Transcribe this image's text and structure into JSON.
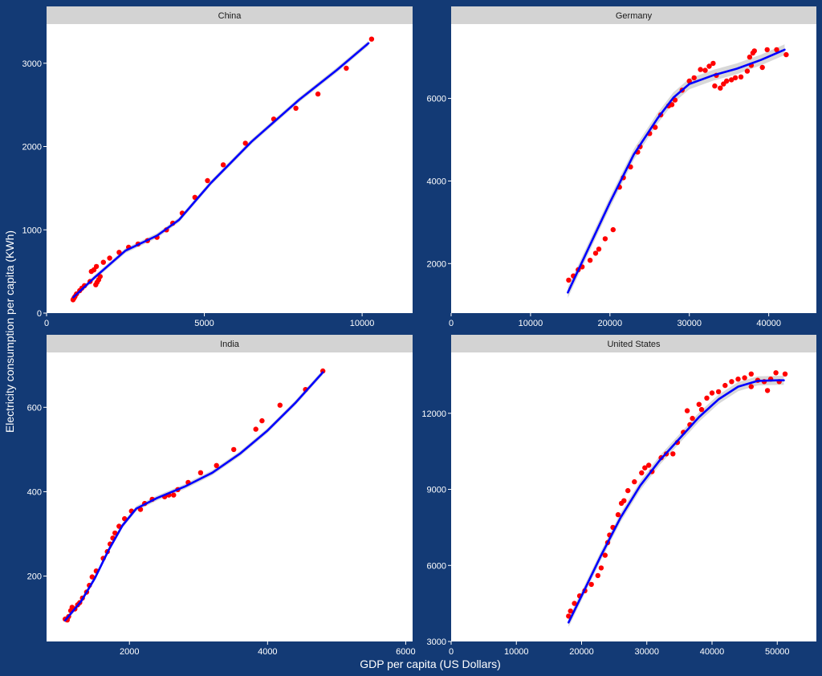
{
  "colors": {
    "background": "#133a75",
    "points": "#ff0000",
    "smooth_line": "#0000ff",
    "ribbon": "#bebebe",
    "strip": "#d3d3d3",
    "panel": "#ffffff"
  },
  "chart_data": {
    "type": "scatter",
    "xlabel": "GDP per capita (US Dollars)",
    "ylabel": "Electricity consumption per capita (KWh)",
    "grid": false,
    "overlay": "smoothed trend line with confidence band",
    "facets": [
      {
        "title": "China",
        "xlim": [
          0,
          11600
        ],
        "ylim": [
          0,
          3470
        ],
        "x_ticks": [
          0,
          5000,
          10000
        ],
        "x_tick_labels": [
          "0",
          "5000",
          "10000"
        ],
        "y_ticks": [
          0,
          1000,
          2000,
          3000
        ],
        "y_tick_labels": [
          "0",
          "1000",
          "2000",
          "3000"
        ],
        "points": [
          [
            840,
            160
          ],
          [
            870,
            180
          ],
          [
            900,
            200
          ],
          [
            950,
            230
          ],
          [
            1050,
            270
          ],
          [
            1120,
            300
          ],
          [
            1200,
            330
          ],
          [
            1380,
            380
          ],
          [
            1420,
            500
          ],
          [
            1500,
            520
          ],
          [
            1560,
            340
          ],
          [
            1600,
            370
          ],
          [
            1650,
            400
          ],
          [
            1700,
            440
          ],
          [
            1580,
            560
          ],
          [
            1800,
            610
          ],
          [
            2000,
            660
          ],
          [
            2300,
            730
          ],
          [
            2600,
            790
          ],
          [
            2900,
            830
          ],
          [
            3200,
            870
          ],
          [
            3500,
            910
          ],
          [
            3800,
            1000
          ],
          [
            4000,
            1080
          ],
          [
            4300,
            1200
          ],
          [
            4700,
            1390
          ],
          [
            5100,
            1590
          ],
          [
            5600,
            1780
          ],
          [
            6300,
            2040
          ],
          [
            7200,
            2330
          ],
          [
            7900,
            2460
          ],
          [
            8600,
            2630
          ],
          [
            9500,
            2940
          ],
          [
            10300,
            3290
          ]
        ],
        "smooth": [
          [
            850,
            190
          ],
          [
            1500,
            420
          ],
          [
            2500,
            750
          ],
          [
            3500,
            930
          ],
          [
            4200,
            1120
          ],
          [
            5200,
            1560
          ],
          [
            6500,
            2060
          ],
          [
            8000,
            2560
          ],
          [
            9200,
            2920
          ],
          [
            10200,
            3240
          ]
        ],
        "band": 30
      },
      {
        "title": "Germany",
        "xlim": [
          0,
          46000
        ],
        "ylim": [
          800,
          7800
        ],
        "x_ticks": [
          0,
          10000,
          20000,
          30000,
          40000
        ],
        "x_tick_labels": [
          "0",
          "10000",
          "20000",
          "30000",
          "40000"
        ],
        "y_ticks": [
          2000,
          4000,
          6000
        ],
        "y_tick_labels": [
          "2000",
          "4000",
          "6000"
        ],
        "points": [
          [
            14800,
            1600
          ],
          [
            15400,
            1700
          ],
          [
            16000,
            1850
          ],
          [
            16500,
            1920
          ],
          [
            17500,
            2080
          ],
          [
            18200,
            2250
          ],
          [
            18600,
            2350
          ],
          [
            19400,
            2600
          ],
          [
            20400,
            2820
          ],
          [
            21200,
            3850
          ],
          [
            21700,
            4080
          ],
          [
            22600,
            4340
          ],
          [
            23500,
            4700
          ],
          [
            23800,
            4830
          ],
          [
            25000,
            5150
          ],
          [
            25700,
            5300
          ],
          [
            26400,
            5600
          ],
          [
            27400,
            5820
          ],
          [
            27800,
            5850
          ],
          [
            28200,
            5960
          ],
          [
            29100,
            6200
          ],
          [
            30000,
            6420
          ],
          [
            30600,
            6500
          ],
          [
            31400,
            6700
          ],
          [
            32000,
            6680
          ],
          [
            32500,
            6780
          ],
          [
            33000,
            6850
          ],
          [
            33400,
            6560
          ],
          [
            33200,
            6300
          ],
          [
            33900,
            6250
          ],
          [
            34300,
            6350
          ],
          [
            34700,
            6420
          ],
          [
            35300,
            6450
          ],
          [
            35800,
            6500
          ],
          [
            36500,
            6520
          ],
          [
            37300,
            6660
          ],
          [
            37600,
            7000
          ],
          [
            37800,
            6800
          ],
          [
            38000,
            7100
          ],
          [
            38200,
            7150
          ],
          [
            39200,
            6750
          ],
          [
            39800,
            7180
          ],
          [
            41000,
            7180
          ],
          [
            42200,
            7060
          ]
        ],
        "smooth": [
          [
            14700,
            1300
          ],
          [
            17000,
            2250
          ],
          [
            20000,
            3480
          ],
          [
            23000,
            4640
          ],
          [
            26000,
            5520
          ],
          [
            28000,
            6020
          ],
          [
            30000,
            6350
          ],
          [
            33000,
            6560
          ],
          [
            36000,
            6720
          ],
          [
            39000,
            6930
          ],
          [
            42000,
            7180
          ]
        ],
        "band": 130
      },
      {
        "title": "India",
        "xlim": [
          800,
          6100
        ],
        "ylim": [
          45,
          730
        ],
        "x_ticks": [
          2000,
          4000,
          6000
        ],
        "x_tick_labels": [
          "2000",
          "4000",
          "6000"
        ],
        "y_ticks": [
          200,
          400,
          600
        ],
        "y_tick_labels": [
          "200",
          "400",
          "600"
        ],
        "points": [
          [
            1070,
            98
          ],
          [
            1100,
            96
          ],
          [
            1120,
            104
          ],
          [
            1150,
            118
          ],
          [
            1170,
            126
          ],
          [
            1210,
            122
          ],
          [
            1250,
            132
          ],
          [
            1280,
            137
          ],
          [
            1320,
            148
          ],
          [
            1380,
            162
          ],
          [
            1420,
            178
          ],
          [
            1460,
            198
          ],
          [
            1520,
            212
          ],
          [
            1620,
            242
          ],
          [
            1680,
            258
          ],
          [
            1720,
            276
          ],
          [
            1760,
            290
          ],
          [
            1790,
            302
          ],
          [
            1850,
            318
          ],
          [
            1930,
            336
          ],
          [
            2030,
            354
          ],
          [
            2160,
            358
          ],
          [
            2220,
            372
          ],
          [
            2330,
            382
          ],
          [
            2510,
            388
          ],
          [
            2570,
            392
          ],
          [
            2640,
            392
          ],
          [
            2700,
            405
          ],
          [
            2850,
            422
          ],
          [
            3030,
            445
          ],
          [
            3260,
            462
          ],
          [
            3510,
            500
          ],
          [
            3830,
            548
          ],
          [
            3920,
            568
          ],
          [
            4180,
            605
          ],
          [
            4550,
            642
          ],
          [
            4800,
            686
          ]
        ],
        "smooth": [
          [
            1070,
            95
          ],
          [
            1300,
            140
          ],
          [
            1500,
            195
          ],
          [
            1700,
            262
          ],
          [
            1900,
            320
          ],
          [
            2100,
            360
          ],
          [
            2400,
            385
          ],
          [
            2800,
            412
          ],
          [
            3200,
            445
          ],
          [
            3600,
            490
          ],
          [
            4000,
            545
          ],
          [
            4400,
            610
          ],
          [
            4800,
            683
          ]
        ],
        "band": 6
      },
      {
        "title": "United States",
        "xlim": [
          0,
          56000
        ],
        "ylim": [
          3000,
          14400
        ],
        "x_ticks": [
          0,
          10000,
          20000,
          30000,
          40000,
          50000
        ],
        "x_tick_labels": [
          "0",
          "10000",
          "20000",
          "30000",
          "40000",
          "50000"
        ],
        "y_ticks": [
          3000,
          6000,
          9000,
          12000
        ],
        "y_tick_labels": [
          "3000",
          "6000",
          "9000",
          "12000"
        ],
        "points": [
          [
            18000,
            4000
          ],
          [
            18300,
            4200
          ],
          [
            18900,
            4500
          ],
          [
            19700,
            4800
          ],
          [
            20500,
            5000
          ],
          [
            21500,
            5250
          ],
          [
            22500,
            5600
          ],
          [
            23000,
            5900
          ],
          [
            23600,
            6400
          ],
          [
            24000,
            6900
          ],
          [
            24300,
            7200
          ],
          [
            24800,
            7500
          ],
          [
            25600,
            8000
          ],
          [
            26100,
            8450
          ],
          [
            26500,
            8550
          ],
          [
            27100,
            8950
          ],
          [
            28100,
            9300
          ],
          [
            29200,
            9650
          ],
          [
            29700,
            9850
          ],
          [
            30300,
            9950
          ],
          [
            30800,
            9700
          ],
          [
            32200,
            10250
          ],
          [
            33000,
            10400
          ],
          [
            34000,
            10400
          ],
          [
            34700,
            10850
          ],
          [
            35600,
            11250
          ],
          [
            36200,
            12100
          ],
          [
            36600,
            11550
          ],
          [
            37000,
            11800
          ],
          [
            38000,
            12350
          ],
          [
            38400,
            12150
          ],
          [
            39200,
            12600
          ],
          [
            40000,
            12800
          ],
          [
            41000,
            12850
          ],
          [
            42000,
            13100
          ],
          [
            43000,
            13250
          ],
          [
            44000,
            13350
          ],
          [
            45000,
            13400
          ],
          [
            46000,
            13550
          ],
          [
            46000,
            13050
          ],
          [
            47000,
            13300
          ],
          [
            48000,
            13250
          ],
          [
            48500,
            12900
          ],
          [
            49000,
            13350
          ],
          [
            49800,
            13600
          ],
          [
            50300,
            13250
          ],
          [
            51200,
            13550
          ]
        ],
        "smooth": [
          [
            18000,
            3750
          ],
          [
            20000,
            4800
          ],
          [
            23000,
            6400
          ],
          [
            26000,
            7900
          ],
          [
            29000,
            9150
          ],
          [
            32000,
            10150
          ],
          [
            35000,
            11000
          ],
          [
            38000,
            11850
          ],
          [
            41000,
            12550
          ],
          [
            44000,
            13050
          ],
          [
            47000,
            13280
          ],
          [
            50000,
            13300
          ],
          [
            51000,
            13300
          ]
        ],
        "band": 180
      }
    ]
  }
}
